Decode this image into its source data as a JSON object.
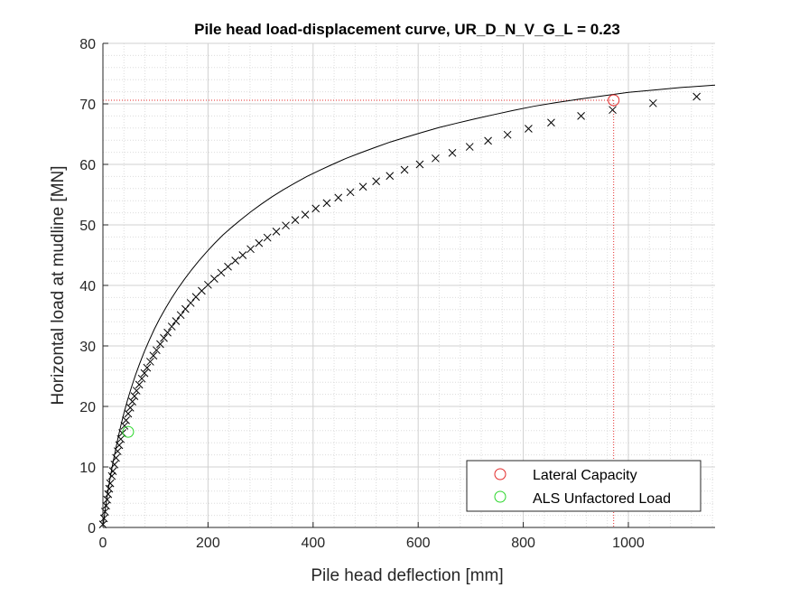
{
  "chart_data": {
    "type": "line",
    "title": "Pile head load-displacement curve, UR_D_N_V_G_L = 0.23",
    "xlabel": "Pile head deflection [mm]",
    "ylabel": "Horizontal load at mudline [MN]",
    "xlim": [
      0,
      1165
    ],
    "ylim": [
      0,
      80
    ],
    "xticks": [
      0,
      200,
      400,
      600,
      800,
      1000
    ],
    "yticks": [
      0,
      10,
      20,
      30,
      40,
      50,
      60,
      70,
      80
    ],
    "grid": true,
    "minor_grid": true,
    "legend_position": "bottom-right",
    "series": [
      {
        "type": "line",
        "color": "#000000",
        "x": [
          0,
          2,
          4,
          7,
          10,
          14,
          18,
          23,
          28,
          34,
          40,
          47,
          54,
          62,
          70,
          79,
          88,
          98,
          108,
          119,
          130,
          142,
          155,
          168,
          182,
          197,
          212,
          228,
          245,
          263,
          282,
          301,
          321,
          343,
          365,
          388,
          412,
          437,
          463,
          490,
          518,
          547,
          577,
          608,
          640,
          673,
          707,
          743,
          780,
          820,
          862,
          908,
          958,
          1000,
          1050,
          1100,
          1165
        ],
        "y": [
          0,
          1.4,
          2.7,
          4.5,
          6.2,
          8.3,
          10.2,
          12.4,
          14.5,
          16.8,
          18.9,
          21.1,
          23.1,
          25.2,
          27.1,
          29.1,
          30.9,
          32.8,
          34.5,
          36.2,
          37.8,
          39.4,
          41.0,
          42.5,
          44.0,
          45.5,
          46.9,
          48.3,
          49.6,
          50.9,
          52.2,
          53.4,
          54.6,
          55.8,
          56.9,
          58.0,
          59.0,
          60.0,
          61.0,
          61.9,
          62.8,
          63.7,
          64.5,
          65.3,
          66.1,
          66.8,
          67.5,
          68.2,
          68.9,
          69.6,
          70.2,
          70.8,
          71.4,
          71.9,
          72.3,
          72.7,
          73.1
        ]
      },
      {
        "type": "markers",
        "marker": "x",
        "color": "#000000",
        "x": [
          0,
          2,
          4,
          6,
          8,
          10,
          12,
          14,
          17,
          19,
          22,
          25,
          28,
          31,
          34,
          37,
          41,
          44,
          48,
          52,
          56,
          60,
          64,
          69,
          74,
          79,
          84,
          90,
          96,
          102,
          109,
          116,
          123,
          131,
          139,
          148,
          157,
          167,
          177,
          188,
          200,
          212,
          225,
          238,
          252,
          266,
          281,
          297,
          313,
          330,
          348,
          366,
          385,
          405,
          426,
          448,
          471,
          495,
          520,
          546,
          574,
          603,
          633,
          665,
          698,
          733,
          770,
          810,
          853,
          910,
          970,
          1047,
          1130
        ],
        "y": [
          0.5,
          1.5,
          2.6,
          3.6,
          4.6,
          5.5,
          6.4,
          7.3,
          8.5,
          9.3,
          10.4,
          11.5,
          12.6,
          13.6,
          14.6,
          15.6,
          16.8,
          17.7,
          18.8,
          19.8,
          20.8,
          21.7,
          22.6,
          23.6,
          24.6,
          25.5,
          26.4,
          27.4,
          28.4,
          29.3,
          30.3,
          31.3,
          32.2,
          33.2,
          34.1,
          35.1,
          36.1,
          37.1,
          38.1,
          39.1,
          40.1,
          41.1,
          42.1,
          43.1,
          44.1,
          45.0,
          46.0,
          47.0,
          47.9,
          48.9,
          49.9,
          50.8,
          51.7,
          52.7,
          53.6,
          54.5,
          55.4,
          56.3,
          57.2,
          58.1,
          59.1,
          60.0,
          61.0,
          61.9,
          62.9,
          63.9,
          64.9,
          65.9,
          66.9,
          68.0,
          69.0,
          70.1,
          71.2
        ]
      },
      {
        "type": "markers",
        "marker": "o",
        "color": "#e32b2b",
        "name": "Lateral Capacity",
        "x": [
          972
        ],
        "y": [
          70.6
        ]
      },
      {
        "type": "markers",
        "marker": "o",
        "color": "#2bd62b",
        "name": "ALS Unfactored Load",
        "x": [
          48
        ],
        "y": [
          15.8
        ]
      },
      {
        "type": "reference-lines",
        "style": "dotted",
        "color": "#e32b2b",
        "x": [
          972
        ],
        "y": [
          70.6
        ]
      }
    ]
  }
}
